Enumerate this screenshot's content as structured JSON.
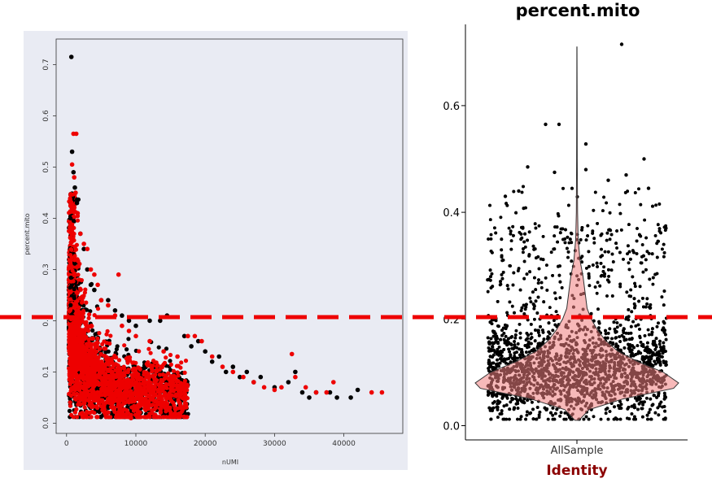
{
  "chart_data": [
    {
      "type": "scatter",
      "title": "",
      "xlabel": "nUMI",
      "ylabel": "percent.mito",
      "xlim": [
        -1500,
        48500
      ],
      "ylim": [
        -0.02,
        0.75
      ],
      "xticks": [
        0,
        10000,
        20000,
        30000,
        40000
      ],
      "yticks": [
        0.0,
        0.1,
        0.2,
        0.3,
        0.4,
        0.5,
        0.6,
        0.7
      ],
      "xtick_labels": [
        "0",
        "10000",
        "20000",
        "30000",
        "40000"
      ],
      "ytick_labels": [
        "0.0",
        "0.1",
        "0.2",
        "0.3",
        "0.4",
        "0.5",
        "0.6",
        "0.7"
      ],
      "background": "#e9ebf3",
      "grid": false,
      "series": [
        {
          "color": "#000000",
          "points": [
            [
              700,
              0.715
            ],
            [
              800,
              0.53
            ],
            [
              1000,
              0.49
            ],
            [
              1200,
              0.46
            ],
            [
              1500,
              0.43
            ],
            [
              2000,
              0.37
            ],
            [
              2500,
              0.34
            ],
            [
              3000,
              0.3
            ],
            [
              3500,
              0.27
            ],
            [
              4000,
              0.26
            ],
            [
              5000,
              0.24
            ],
            [
              6000,
              0.24
            ],
            [
              7000,
              0.22
            ],
            [
              8000,
              0.21
            ],
            [
              9000,
              0.2
            ],
            [
              10000,
              0.19
            ],
            [
              12000,
              0.2
            ],
            [
              13500,
              0.2
            ],
            [
              14500,
              0.21
            ],
            [
              17000,
              0.17
            ],
            [
              18000,
              0.15
            ],
            [
              19000,
              0.16
            ],
            [
              20000,
              0.14
            ],
            [
              21000,
              0.12
            ],
            [
              22000,
              0.13
            ],
            [
              23000,
              0.1
            ],
            [
              24000,
              0.11
            ],
            [
              25000,
              0.09
            ],
            [
              26000,
              0.1
            ],
            [
              27000,
              0.08
            ],
            [
              28000,
              0.09
            ],
            [
              30000,
              0.07
            ],
            [
              32000,
              0.08
            ],
            [
              33000,
              0.1
            ],
            [
              34000,
              0.06
            ],
            [
              35000,
              0.05
            ],
            [
              36000,
              0.06
            ],
            [
              38000,
              0.06
            ],
            [
              39000,
              0.05
            ],
            [
              41000,
              0.05
            ],
            [
              42000,
              0.065
            ]
          ]
        },
        {
          "color": "#ee0000",
          "points": [
            [
              1000,
              0.565
            ],
            [
              1400,
              0.565
            ],
            [
              800,
              0.505
            ],
            [
              1100,
              0.48
            ],
            [
              1300,
              0.45
            ],
            [
              1600,
              0.41
            ],
            [
              2000,
              0.37
            ],
            [
              2500,
              0.35
            ],
            [
              3000,
              0.34
            ],
            [
              3500,
              0.3
            ],
            [
              4000,
              0.29
            ],
            [
              4500,
              0.27
            ],
            [
              7500,
              0.29
            ],
            [
              5000,
              0.24
            ],
            [
              6000,
              0.23
            ],
            [
              7000,
              0.21
            ],
            [
              8000,
              0.19
            ],
            [
              9000,
              0.18
            ],
            [
              10000,
              0.17
            ],
            [
              12000,
              0.16
            ],
            [
              14000,
              0.14
            ],
            [
              16000,
              0.13
            ],
            [
              17500,
              0.17
            ],
            [
              18500,
              0.17
            ],
            [
              19500,
              0.16
            ],
            [
              21000,
              0.13
            ],
            [
              22500,
              0.11
            ],
            [
              24000,
              0.1
            ],
            [
              25500,
              0.09
            ],
            [
              27000,
              0.08
            ],
            [
              28500,
              0.07
            ],
            [
              30000,
              0.065
            ],
            [
              31000,
              0.07
            ],
            [
              32500,
              0.135
            ],
            [
              33000,
              0.09
            ],
            [
              34500,
              0.07
            ],
            [
              36000,
              0.06
            ],
            [
              37500,
              0.06
            ],
            [
              38500,
              0.08
            ],
            [
              44000,
              0.06
            ],
            [
              45500,
              0.06
            ],
            [
              9300,
              0.01
            ]
          ]
        }
      ]
    },
    {
      "type": "violin",
      "title": "percent.mito",
      "xlabel": "Identity",
      "ylabel": "",
      "categories": [
        "AllSample"
      ],
      "ylim": [
        -0.02,
        0.75
      ],
      "yticks": [
        0.0,
        0.2,
        0.4,
        0.6
      ],
      "ytick_labels": [
        "0.0",
        "0.2",
        "0.4",
        "0.6"
      ],
      "violin_color": "#f08080",
      "point_color": "#000000",
      "density_profile": [
        [
          0.01,
          0.02
        ],
        [
          0.03,
          0.12
        ],
        [
          0.05,
          0.45
        ],
        [
          0.07,
          0.95
        ],
        [
          0.08,
          1.0
        ],
        [
          0.1,
          0.85
        ],
        [
          0.12,
          0.6
        ],
        [
          0.14,
          0.4
        ],
        [
          0.16,
          0.28
        ],
        [
          0.18,
          0.2
        ],
        [
          0.2,
          0.14
        ],
        [
          0.22,
          0.1
        ],
        [
          0.25,
          0.08
        ],
        [
          0.28,
          0.06
        ],
        [
          0.31,
          0.03
        ],
        [
          0.35,
          0.012
        ],
        [
          0.4,
          0.006
        ],
        [
          0.5,
          0.003
        ],
        [
          0.6,
          0.002
        ],
        [
          0.71,
          0.001
        ]
      ],
      "outliers": [
        [
          0.1,
          0.48
        ],
        [
          -0.55,
          0.485
        ],
        [
          -0.35,
          0.565
        ],
        [
          -0.2,
          0.565
        ],
        [
          0.5,
          0.715
        ],
        [
          0.75,
          0.5
        ],
        [
          -0.65,
          0.44
        ],
        [
          -0.25,
          0.475
        ],
        [
          0.1,
          0.528
        ],
        [
          0.55,
          0.47
        ],
        [
          0.8,
          0.445
        ],
        [
          -0.8,
          0.43
        ],
        [
          0.35,
          0.46
        ]
      ]
    }
  ],
  "threshold": {
    "value": 0.2,
    "color": "#ee0000"
  }
}
